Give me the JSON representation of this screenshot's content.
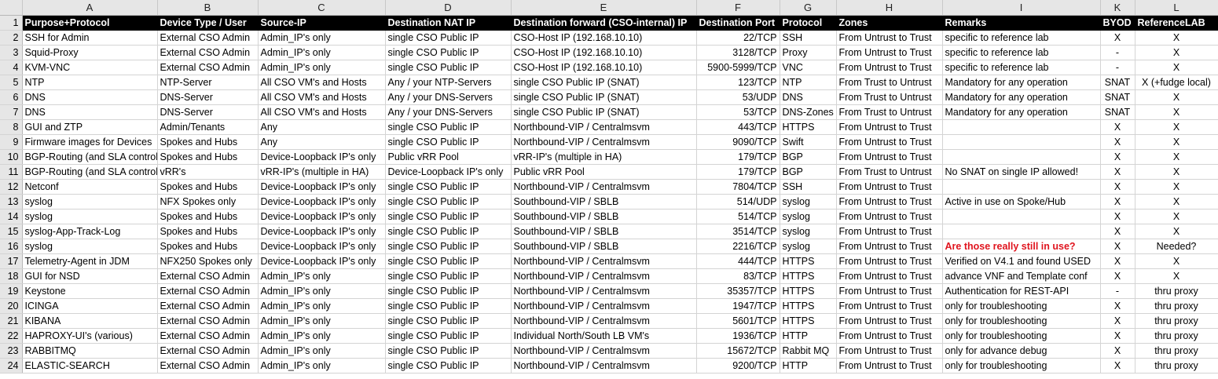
{
  "columns": [
    "A",
    "B",
    "C",
    "D",
    "E",
    "F",
    "G",
    "H",
    "I",
    "K",
    "L"
  ],
  "header": [
    "Purpose+Protocol",
    "Device Type / User",
    "Source-IP",
    "Destination NAT IP",
    "Destination forward (CSO-internal) IP",
    "Destination Port",
    "Protocol",
    "Zones",
    "Remarks",
    "BYOD",
    "ReferenceLAB"
  ],
  "rows": [
    {
      "num": "2",
      "cells": [
        "SSH for Admin",
        "External CSO Admin",
        "Admin_IP's only",
        "single CSO Public IP",
        "CSO-Host IP (192.168.10.10)",
        "22/TCP",
        "SSH",
        "From Untrust to Trust",
        "specific to reference lab",
        "X",
        "X"
      ]
    },
    {
      "num": "3",
      "cells": [
        "Squid-Proxy",
        "External CSO Admin",
        "Admin_IP's only",
        "single CSO Public IP",
        "CSO-Host IP (192.168.10.10)",
        "3128/TCP",
        "Proxy",
        "From Untrust to Trust",
        "specific to reference lab",
        "-",
        "X"
      ]
    },
    {
      "num": "4",
      "cells": [
        "KVM-VNC",
        "External CSO Admin",
        "Admin_IP's only",
        "single CSO Public IP",
        "CSO-Host IP (192.168.10.10)",
        "5900-5999/TCP",
        "VNC",
        "From Untrust to Trust",
        "specific to reference lab",
        "-",
        "X"
      ]
    },
    {
      "num": "5",
      "cells": [
        "NTP",
        "NTP-Server",
        "All CSO VM's and Hosts",
        "Any / your NTP-Servers",
        "single CSO Public IP (SNAT)",
        "123/TCP",
        "NTP",
        "From Trust to Untrust",
        "Mandatory for any operation",
        "SNAT",
        "X (+fudge local)"
      ]
    },
    {
      "num": "6",
      "cells": [
        "DNS",
        "DNS-Server",
        "All CSO VM's and Hosts",
        "Any / your DNS-Servers",
        "single CSO Public IP (SNAT)",
        "53/UDP",
        "DNS",
        "From Trust to Untrust",
        "Mandatory for any operation",
        "SNAT",
        "X"
      ]
    },
    {
      "num": "7",
      "cells": [
        "DNS",
        "DNS-Server",
        "All CSO VM's and Hosts",
        "Any / your DNS-Servers",
        "single CSO Public IP (SNAT)",
        "53/TCP",
        "DNS-Zones",
        "From Trust to Untrust",
        "Mandatory for any operation",
        "SNAT",
        "X"
      ]
    },
    {
      "num": "8",
      "cells": [
        "GUI and ZTP",
        "Admin/Tenants",
        "Any",
        "single CSO Public IP",
        "Northbound-VIP / Centralmsvm",
        "443/TCP",
        "HTTPS",
        "From Untrust to Trust",
        "",
        "X",
        "X"
      ]
    },
    {
      "num": "9",
      "cells": [
        "Firmware images for Devices",
        "Spokes and Hubs",
        "Any",
        "single CSO Public IP",
        "Northbound-VIP / Centralmsvm",
        "9090/TCP",
        "Swift",
        "From Untrust to Trust",
        "",
        "X",
        "X"
      ]
    },
    {
      "num": "10",
      "cells": [
        "BGP-Routing (and SLA control",
        "Spokes and Hubs",
        "Device-Loopback IP's only",
        "Public vRR Pool",
        "vRR-IP's (multiple in HA)",
        "179/TCP",
        "BGP",
        "From Untrust to Trust",
        "",
        "X",
        "X"
      ]
    },
    {
      "num": "11",
      "cells": [
        "BGP-Routing (and SLA control",
        "vRR's",
        "vRR-IP's (multiple in HA)",
        "Device-Loopback IP's only",
        "Public vRR Pool",
        "179/TCP",
        "BGP",
        "From Trust to Untrust",
        "No SNAT on single IP allowed!",
        "X",
        "X"
      ]
    },
    {
      "num": "12",
      "cells": [
        "Netconf",
        "Spokes and Hubs",
        "Device-Loopback IP's only",
        "single CSO Public IP",
        "Northbound-VIP / Centralmsvm",
        "7804/TCP",
        "SSH",
        "From Untrust to Trust",
        "",
        "X",
        "X"
      ]
    },
    {
      "num": "13",
      "cells": [
        "syslog",
        "NFX Spokes only",
        "Device-Loopback IP's only",
        "single CSO Public IP",
        "Southbound-VIP / SBLB",
        "514/UDP",
        "syslog",
        "From Untrust to Trust",
        "Active in use on Spoke/Hub",
        "X",
        "X"
      ]
    },
    {
      "num": "14",
      "cells": [
        "syslog",
        "Spokes and Hubs",
        "Device-Loopback IP's only",
        "single CSO Public IP",
        "Southbound-VIP / SBLB",
        "514/TCP",
        "syslog",
        "From Untrust to Trust",
        "",
        "X",
        "X"
      ]
    },
    {
      "num": "15",
      "cells": [
        "syslog-App-Track-Log",
        "Spokes and Hubs",
        "Device-Loopback IP's only",
        "single CSO Public IP",
        "Southbound-VIP / SBLB",
        "3514/TCP",
        "syslog",
        "From Untrust to Trust",
        "",
        "X",
        "X"
      ]
    },
    {
      "num": "16",
      "cells": [
        "syslog",
        "Spokes and Hubs",
        "Device-Loopback IP's only",
        "single CSO Public IP",
        "Southbound-VIP / SBLB",
        "2216/TCP",
        "syslog",
        "From Untrust to Trust",
        "Are those really still in use?",
        "X",
        "Needed?"
      ],
      "red_remark": true
    },
    {
      "num": "17",
      "cells": [
        "Telemetry-Agent in JDM",
        "NFX250 Spokes only",
        "Device-Loopback IP's only",
        "single CSO Public IP",
        "Northbound-VIP / Centralmsvm",
        "444/TCP",
        "HTTPS",
        "From Untrust to Trust",
        "Verified on V4.1 and found USED",
        "X",
        "X"
      ]
    },
    {
      "num": "18",
      "cells": [
        "GUI for NSD",
        "External CSO Admin",
        "Admin_IP's only",
        "single CSO Public IP",
        "Northbound-VIP / Centralmsvm",
        "83/TCP",
        "HTTPS",
        "From Untrust to Trust",
        "advance VNF and Template conf",
        "X",
        "X"
      ]
    },
    {
      "num": "19",
      "cells": [
        "Keystone",
        "External CSO Admin",
        "Admin_IP's only",
        "single CSO Public IP",
        "Northbound-VIP / Centralmsvm",
        "35357/TCP",
        "HTTPS",
        "From Untrust to Trust",
        "Authentication for REST-API",
        "-",
        "thru proxy"
      ]
    },
    {
      "num": "20",
      "cells": [
        "ICINGA",
        "External CSO Admin",
        "Admin_IP's only",
        "single CSO Public IP",
        "Northbound-VIP / Centralmsvm",
        "1947/TCP",
        "HTTPS",
        "From Untrust to Trust",
        "only for troubleshooting",
        "X",
        "thru proxy"
      ]
    },
    {
      "num": "21",
      "cells": [
        "KIBANA",
        "External CSO Admin",
        "Admin_IP's only",
        "single CSO Public IP",
        "Northbound-VIP / Centralmsvm",
        "5601/TCP",
        "HTTPS",
        "From Untrust to Trust",
        "only for troubleshooting",
        "X",
        "thru proxy"
      ]
    },
    {
      "num": "22",
      "cells": [
        "HAPROXY-UI's (various)",
        "External CSO Admin",
        "Admin_IP's only",
        "single CSO Public IP",
        "Individual North/South LB VM's",
        "1936/TCP",
        "HTTP",
        "From Untrust to Trust",
        "only for troubleshooting",
        "X",
        "thru proxy"
      ]
    },
    {
      "num": "23",
      "cells": [
        "RABBITMQ",
        "External CSO Admin",
        "Admin_IP's only",
        "single CSO Public IP",
        "Northbound-VIP / Centralmsvm",
        "15672/TCP",
        "Rabbit MQ",
        "From Untrust to Trust",
        "only for advance debug",
        "X",
        "thru proxy"
      ]
    },
    {
      "num": "24",
      "cells": [
        "ELASTIC-SEARCH",
        "External CSO Admin",
        "Admin_IP's only",
        "single CSO Public IP",
        "Northbound-VIP / Centralmsvm",
        "9200/TCP",
        "HTTP",
        "From Untrust to Trust",
        "only for troubleshooting",
        "X",
        "thru proxy"
      ]
    }
  ],
  "colors": {
    "header_bg": "#000000",
    "header_fg": "#ffffff",
    "warning_text": "#e0141e",
    "row_header_bg": "#e6e6e6"
  }
}
